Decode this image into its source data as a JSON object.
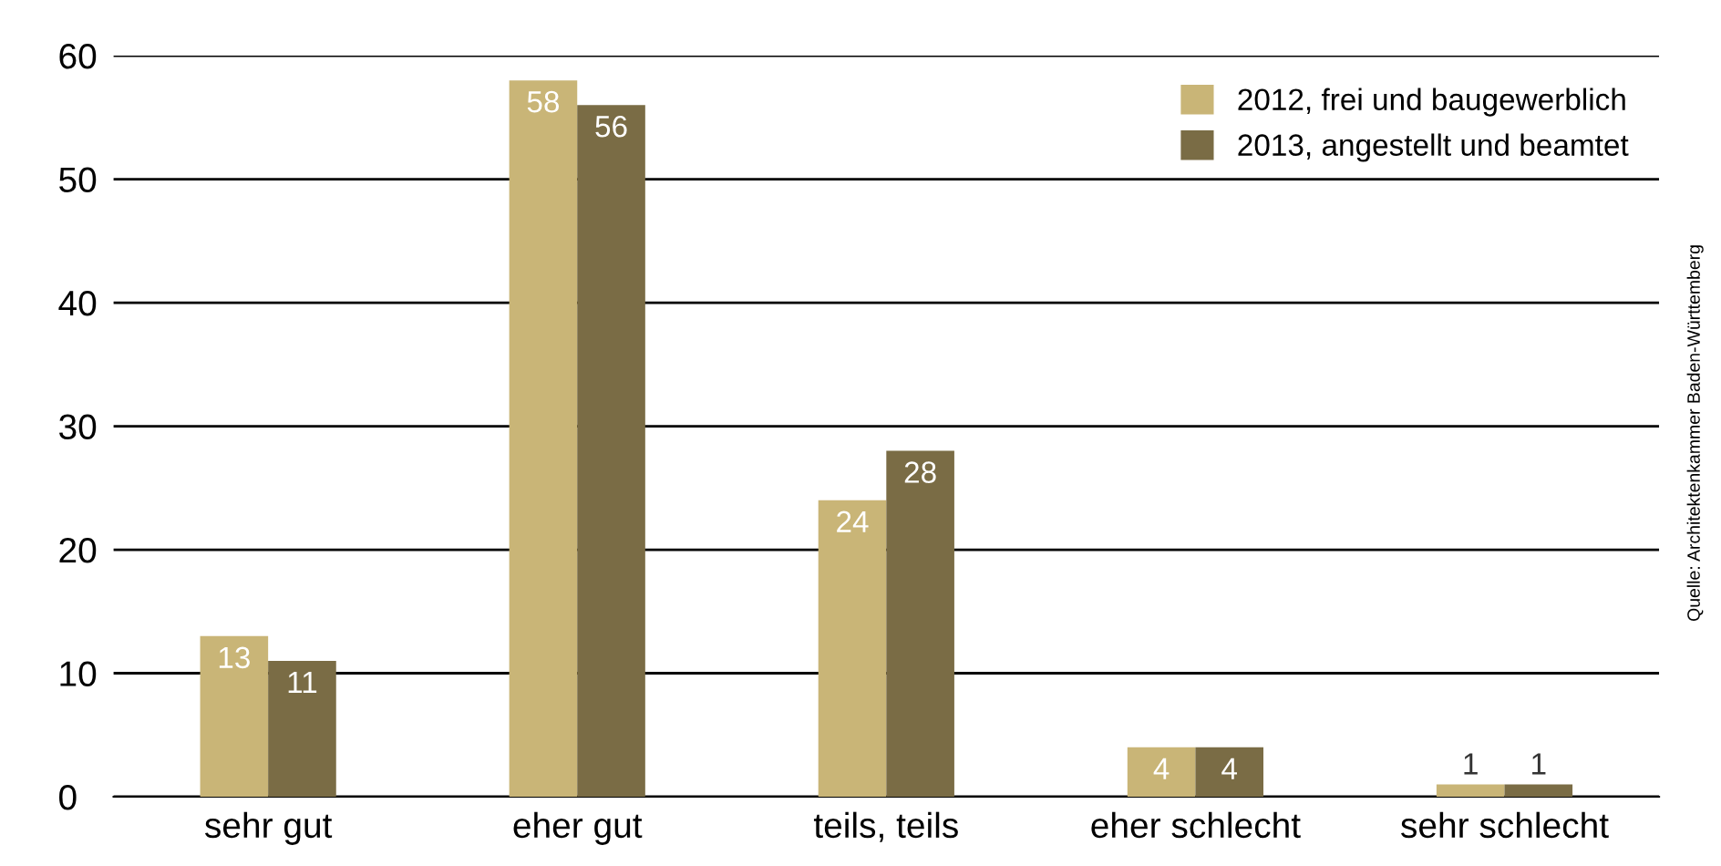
{
  "chart_data": {
    "type": "bar",
    "categories": [
      "sehr gut",
      "eher gut",
      "teils, teils",
      "eher schlecht",
      "sehr schlecht"
    ],
    "series": [
      {
        "name": "2012, frei und baugewerblich",
        "color": "#c9b577",
        "values": [
          13,
          58,
          24,
          4,
          1
        ]
      },
      {
        "name": "2013, angestellt und beamtet",
        "color": "#7a6c45",
        "values": [
          11,
          56,
          28,
          4,
          1
        ]
      }
    ],
    "ylim": [
      0,
      60
    ],
    "yticks": [
      0,
      10,
      20,
      30,
      40,
      50,
      60
    ],
    "grid": "y",
    "legend": "top right",
    "data_labels": true,
    "annotations": [
      "Quelle: Architektenkammer Baden-Württemberg"
    ]
  }
}
